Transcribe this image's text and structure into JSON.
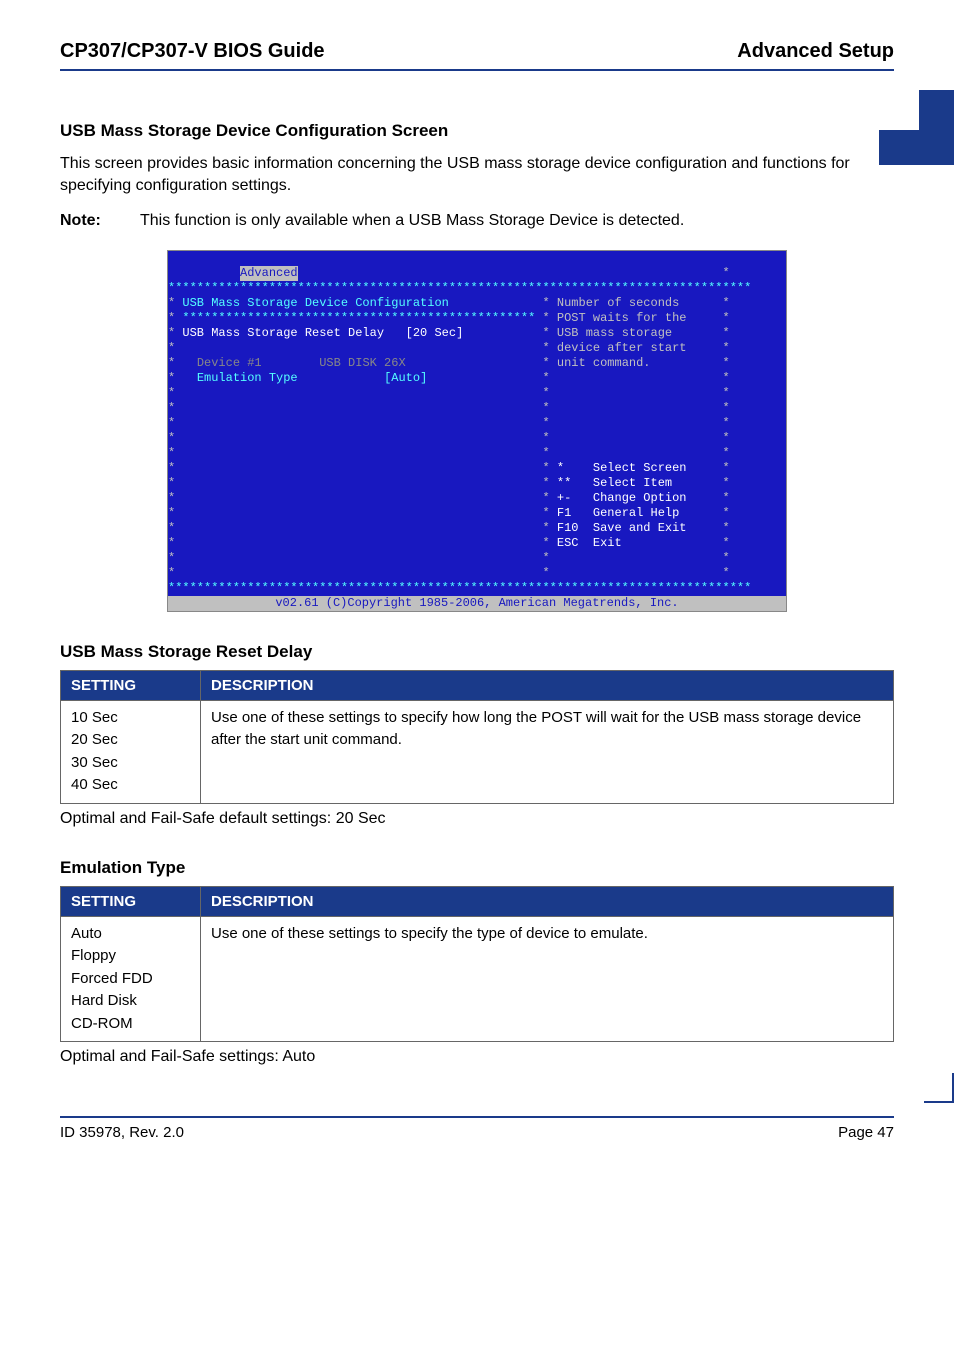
{
  "header": {
    "left": "CP307/CP307-V BIOS Guide",
    "right": "Advanced Setup"
  },
  "colors": {
    "accent": "#1a3a8a",
    "bios_bg": "#1818c0",
    "bios_fg": "#c0c0c0",
    "bios_yellow": "#ffff55",
    "bios_cyan": "#55ffff",
    "bios_grey": "#888888",
    "bios_white": "#ffffff"
  },
  "section": {
    "heading": "USB Mass Storage Device Configuration Screen",
    "para": "This screen provides basic information concerning the USB mass storage device configuration and functions for specifying configuration settings.",
    "note_label": "Note:",
    "note_text": "This function is only available when a USB Mass Storage Device is detected."
  },
  "bios": {
    "tab": "Advanced",
    "title": "USB Mass Storage Device Configuration",
    "opt1_label": "USB Mass Storage Reset Delay",
    "opt1_value": "[20 Sec]",
    "device_label": "Device #1",
    "device_value": "USB DISK 26X",
    "emul_label": "Emulation Type",
    "emul_value": "[Auto]",
    "help1": "Number of seconds",
    "help2": "POST waits for the",
    "help3": "USB mass storage",
    "help4": "device after start",
    "help5": "unit command.",
    "nav1_key": "*",
    "nav1_text": "Select Screen",
    "nav2_key": "**",
    "nav2_text": "Select Item",
    "nav3_key": "+-",
    "nav3_text": "Change Option",
    "nav4_key": "F1",
    "nav4_text": "General Help",
    "nav5_key": "F10",
    "nav5_text": "Save and Exit",
    "nav6_key": "ESC",
    "nav6_text": "Exit",
    "footer": "v02.61 (C)Copyright 1985-2006, American Megatrends, Inc."
  },
  "tables": {
    "col_setting": "SETTING",
    "col_description": "DESCRIPTION",
    "reset_delay": {
      "heading": "USB Mass Storage Reset Delay",
      "settings": "10 Sec\n20 Sec\n30 Sec\n40 Sec",
      "description": "Use one of these settings to specify how long the POST will wait for the USB mass storage device after the start unit command.",
      "caption": "Optimal and Fail-Safe default settings: 20 Sec"
    },
    "emulation": {
      "heading": "Emulation Type",
      "settings": "Auto\nFloppy\nForced FDD\nHard Disk\nCD-ROM",
      "description": "Use one of these settings to specify the type of device to emulate.",
      "caption": "Optimal and Fail-Safe settings: Auto"
    }
  },
  "footer": {
    "left": "ID 35978, Rev. 2.0",
    "right": "Page 47"
  }
}
